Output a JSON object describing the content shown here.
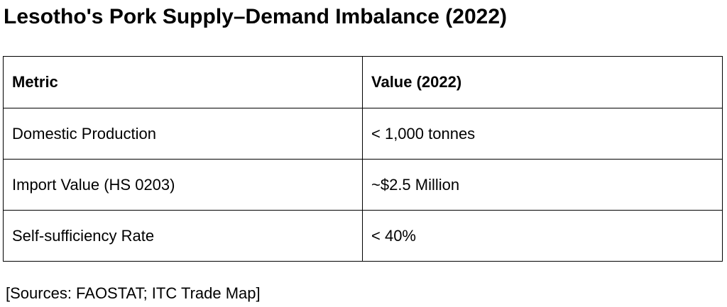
{
  "title": "Lesotho's Pork Supply–Demand Imbalance (2022)",
  "table": {
    "headers": [
      "Metric",
      "Value (2022)"
    ],
    "rows": [
      [
        "Domestic Production",
        "< 1,000 tonnes"
      ],
      [
        "Import Value (HS 0203)",
        "~$2.5 Million"
      ],
      [
        "Self-sufficiency Rate",
        "< 40%"
      ]
    ]
  },
  "sources": "[Sources: FAOSTAT; ITC Trade Map]"
}
